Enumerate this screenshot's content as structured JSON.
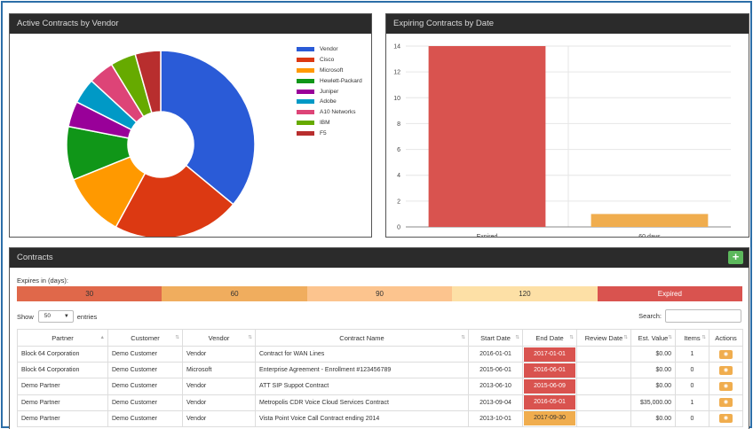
{
  "pie_panel": {
    "title": "Active Contracts by Vendor",
    "chart_data": {
      "type": "pie",
      "donut": true,
      "legend_position": "right",
      "series_label": "Vendor",
      "series_color": "#2a5bd7",
      "slices": [
        {
          "label": "Cisco",
          "value": 5,
          "color": "#dc3912"
        },
        {
          "label": "Microsoft",
          "value": 2.5,
          "color": "#ff9900"
        },
        {
          "label": "Hewlett-Packard",
          "value": 2.1,
          "color": "#109618"
        },
        {
          "label": "Juniper",
          "value": 1,
          "color": "#990099"
        },
        {
          "label": "Adobe",
          "value": 1,
          "color": "#0099c6"
        },
        {
          "label": "A10 Networks",
          "value": 1,
          "color": "#dd4477"
        },
        {
          "label": "IBM",
          "value": 1,
          "color": "#66aa00"
        },
        {
          "label": "F5",
          "value": 1,
          "color": "#b82e2e"
        }
      ]
    }
  },
  "bar_panel": {
    "title": "Expiring Contracts by Date",
    "chart_data": {
      "type": "bar",
      "categories": [
        "Expired",
        "60 days"
      ],
      "values": [
        14,
        1
      ],
      "colors": [
        "#d9534f",
        "#f0ad4e"
      ],
      "ylim": [
        0,
        14
      ],
      "yticks": [
        0,
        2,
        4,
        6,
        8,
        10,
        12,
        14
      ],
      "grid": true
    }
  },
  "contracts": {
    "title": "Contracts",
    "add_button": "+",
    "expires_label": "Expires in (days):",
    "expires_segments": [
      {
        "label": "30",
        "color": "#e0684a",
        "text_color": "#333"
      },
      {
        "label": "60",
        "color": "#f0ad5e",
        "text_color": "#333"
      },
      {
        "label": "90",
        "color": "#fcc48e",
        "text_color": "#333"
      },
      {
        "label": "120",
        "color": "#fde0a6",
        "text_color": "#333"
      },
      {
        "label": "Expired",
        "color": "#d9534f",
        "text_color": "#fff"
      }
    ],
    "show_label": "Show",
    "show_value": "50",
    "entries_label": "entries",
    "search_label": "Search:",
    "columns": [
      "Partner",
      "Customer",
      "Vendor",
      "Contract Name",
      "Start Date",
      "End Date",
      "Review Date",
      "Est. Value",
      "Items",
      "Actions"
    ],
    "rows": [
      {
        "partner": "Block 64 Corporation",
        "customer": "Demo Customer",
        "vendor": "Vendor",
        "name": "Contract for WAN Lines",
        "start": "2016-01-01",
        "end": "2017-01-01",
        "end_color": "#d9534f",
        "review": "",
        "value": "$0.00",
        "items": "1"
      },
      {
        "partner": "Block 64 Corporation",
        "customer": "Demo Customer",
        "vendor": "Microsoft",
        "name": "Enterprise Agreement - Enrollment #123456789",
        "start": "2015-06-01",
        "end": "2016-06-01",
        "end_color": "#d9534f",
        "review": "",
        "value": "$0.00",
        "items": "0"
      },
      {
        "partner": "Demo Partner",
        "customer": "Demo Customer",
        "vendor": "Vendor",
        "name": "ATT SIP Suppot Contract",
        "start": "2013-06-10",
        "end": "2015-06-09",
        "end_color": "#d9534f",
        "review": "",
        "value": "$0.00",
        "items": "0"
      },
      {
        "partner": "Demo Partner",
        "customer": "Demo Customer",
        "vendor": "Vendor",
        "name": "Metropolis CDR Voice Cloud Services Contract",
        "start": "2013-09-04",
        "end": "2016-05-01",
        "end_color": "#d9534f",
        "review": "",
        "value": "$35,000.00",
        "items": "1"
      },
      {
        "partner": "Demo Partner",
        "customer": "Demo Customer",
        "vendor": "Vendor",
        "name": "Vista Point Voice Call Contract ending 2014",
        "start": "2013-10-01",
        "end": "2017-09-30",
        "end_color": "#f0ad4e",
        "review": "",
        "value": "$0.00",
        "items": "0"
      }
    ],
    "action_icon": "eye-icon"
  }
}
